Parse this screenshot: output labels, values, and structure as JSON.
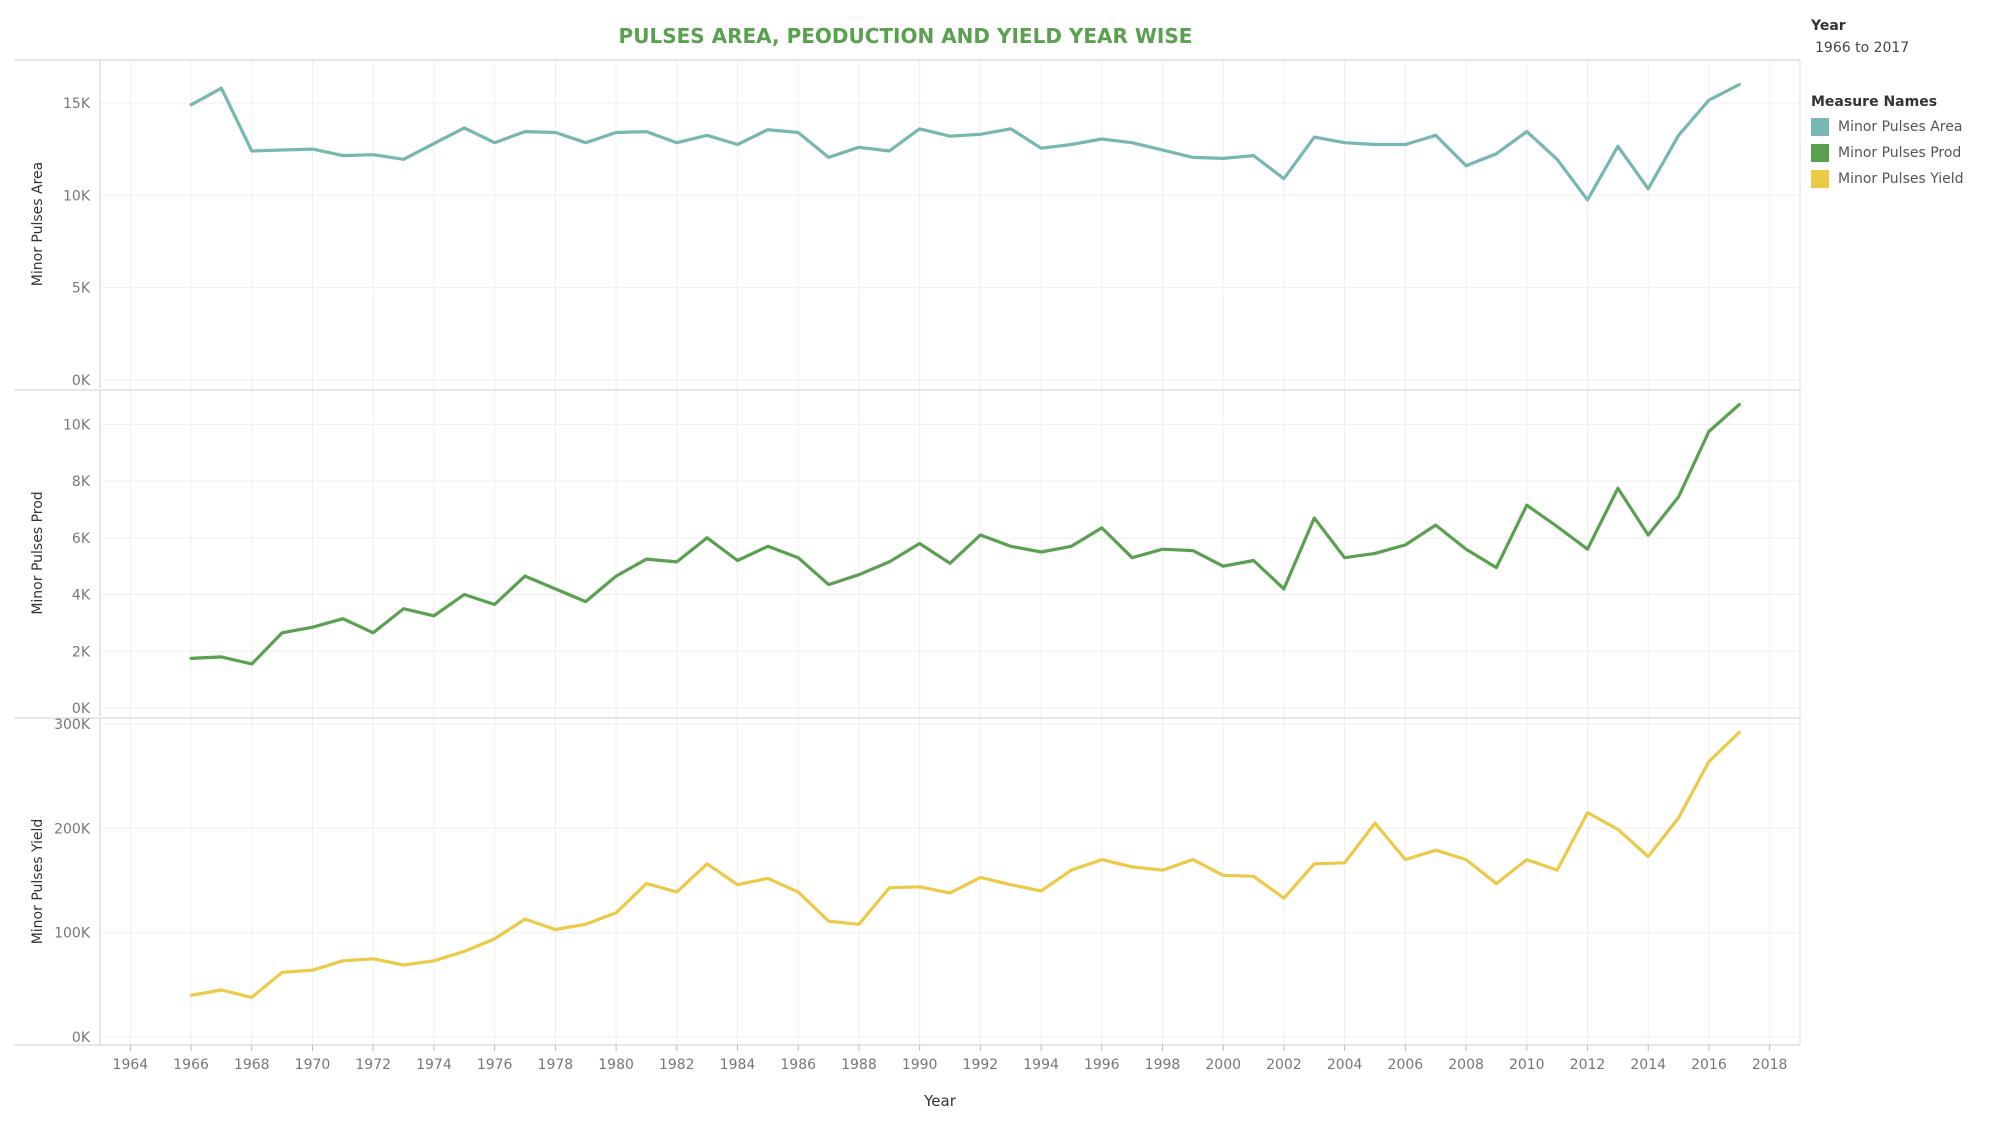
{
  "title": "PULSES AREA, PEODUCTION AND YIELD YEAR WISE",
  "filter": {
    "label": "Year",
    "value": "1966 to 2017"
  },
  "legend": {
    "title": "Measure Names",
    "items": [
      {
        "label": "Minor Pulses Area",
        "color": "#76b7b2"
      },
      {
        "label": "Minor Pulses Prod",
        "color": "#59a14f"
      },
      {
        "label": "Minor Pulses Yield",
        "color": "#edc948"
      }
    ]
  },
  "chart_data": {
    "type": "line",
    "xlabel": "Year",
    "xlim": [
      1963,
      2019
    ],
    "xticks": [
      "1964",
      "1966",
      "1968",
      "1970",
      "1972",
      "1974",
      "1976",
      "1978",
      "1980",
      "1982",
      "1984",
      "1986",
      "1988",
      "1990",
      "1992",
      "1994",
      "1996",
      "1998",
      "2000",
      "2002",
      "2004",
      "2006",
      "2008",
      "2010",
      "2012",
      "2014",
      "2016",
      "2018"
    ],
    "x": [
      1966,
      1967,
      1968,
      1969,
      1970,
      1971,
      1972,
      1973,
      1974,
      1975,
      1976,
      1977,
      1978,
      1979,
      1980,
      1981,
      1982,
      1983,
      1984,
      1985,
      1986,
      1987,
      1988,
      1989,
      1990,
      1991,
      1992,
      1993,
      1994,
      1995,
      1996,
      1997,
      1998,
      1999,
      2000,
      2001,
      2002,
      2003,
      2004,
      2005,
      2006,
      2007,
      2008,
      2009,
      2010,
      2011,
      2012,
      2013,
      2014,
      2015,
      2016,
      2017
    ],
    "panels": [
      {
        "ylabel": "Minor Pulses Area",
        "color": "#76b7b2",
        "ylim": [
          0,
          17000
        ],
        "yticks": [
          0,
          5000,
          10000,
          15000
        ],
        "ytick_labels": [
          "0K",
          "5K",
          "10K",
          "15K"
        ],
        "values": [
          14900,
          15800,
          12400,
          12450,
          12500,
          12150,
          12200,
          11950,
          12800,
          13650,
          12850,
          13450,
          13400,
          12850,
          13400,
          13450,
          12850,
          13250,
          12750,
          13550,
          13400,
          12050,
          12600,
          12400,
          13600,
          13200,
          13300,
          13600,
          12550,
          12750,
          13050,
          12850,
          12450,
          12050,
          12000,
          12150,
          10900,
          13150,
          12850,
          12750,
          12750,
          13250,
          11600,
          12250,
          13450,
          11950,
          9750,
          12650,
          10350,
          13250,
          15150,
          16000
        ]
      },
      {
        "ylabel": "Minor Pulses Prod",
        "color": "#59a14f",
        "ylim": [
          0,
          11000
        ],
        "yticks": [
          0,
          2000,
          4000,
          6000,
          8000,
          10000
        ],
        "ytick_labels": [
          "0K",
          "2K",
          "4K",
          "6K",
          "8K",
          "10K"
        ],
        "values": [
          1750,
          1800,
          1550,
          2650,
          2850,
          3150,
          2650,
          3500,
          3250,
          4000,
          3650,
          4650,
          4200,
          3750,
          4650,
          5250,
          5150,
          6000,
          5200,
          5700,
          5300,
          4350,
          4700,
          5150,
          5800,
          5100,
          6100,
          5700,
          5500,
          5700,
          6350,
          5300,
          5600,
          5550,
          5000,
          5200,
          4200,
          6700,
          5300,
          5450,
          5750,
          6450,
          5600,
          4950,
          7150,
          6400,
          5600,
          7750,
          6100,
          7450,
          9750,
          10700
        ]
      },
      {
        "ylabel": "Minor Pulses Yield",
        "color": "#edc948",
        "ylim": [
          0,
          300000
        ],
        "yticks": [
          0,
          100000,
          200000,
          300000
        ],
        "ytick_labels": [
          "0K",
          "100K",
          "200K",
          "300K"
        ],
        "values": [
          40000,
          45000,
          38000,
          62000,
          64000,
          73000,
          75000,
          69000,
          73000,
          82000,
          94000,
          113000,
          103000,
          108000,
          119000,
          147000,
          139000,
          166000,
          146000,
          152000,
          139000,
          111000,
          108000,
          143000,
          144000,
          138000,
          153000,
          146000,
          140000,
          160000,
          170000,
          163000,
          160000,
          170000,
          155000,
          154000,
          133000,
          166000,
          167000,
          205000,
          170000,
          179000,
          170000,
          147000,
          170000,
          160000,
          215000,
          199000,
          173000,
          210000,
          264000,
          292000
        ]
      }
    ]
  }
}
